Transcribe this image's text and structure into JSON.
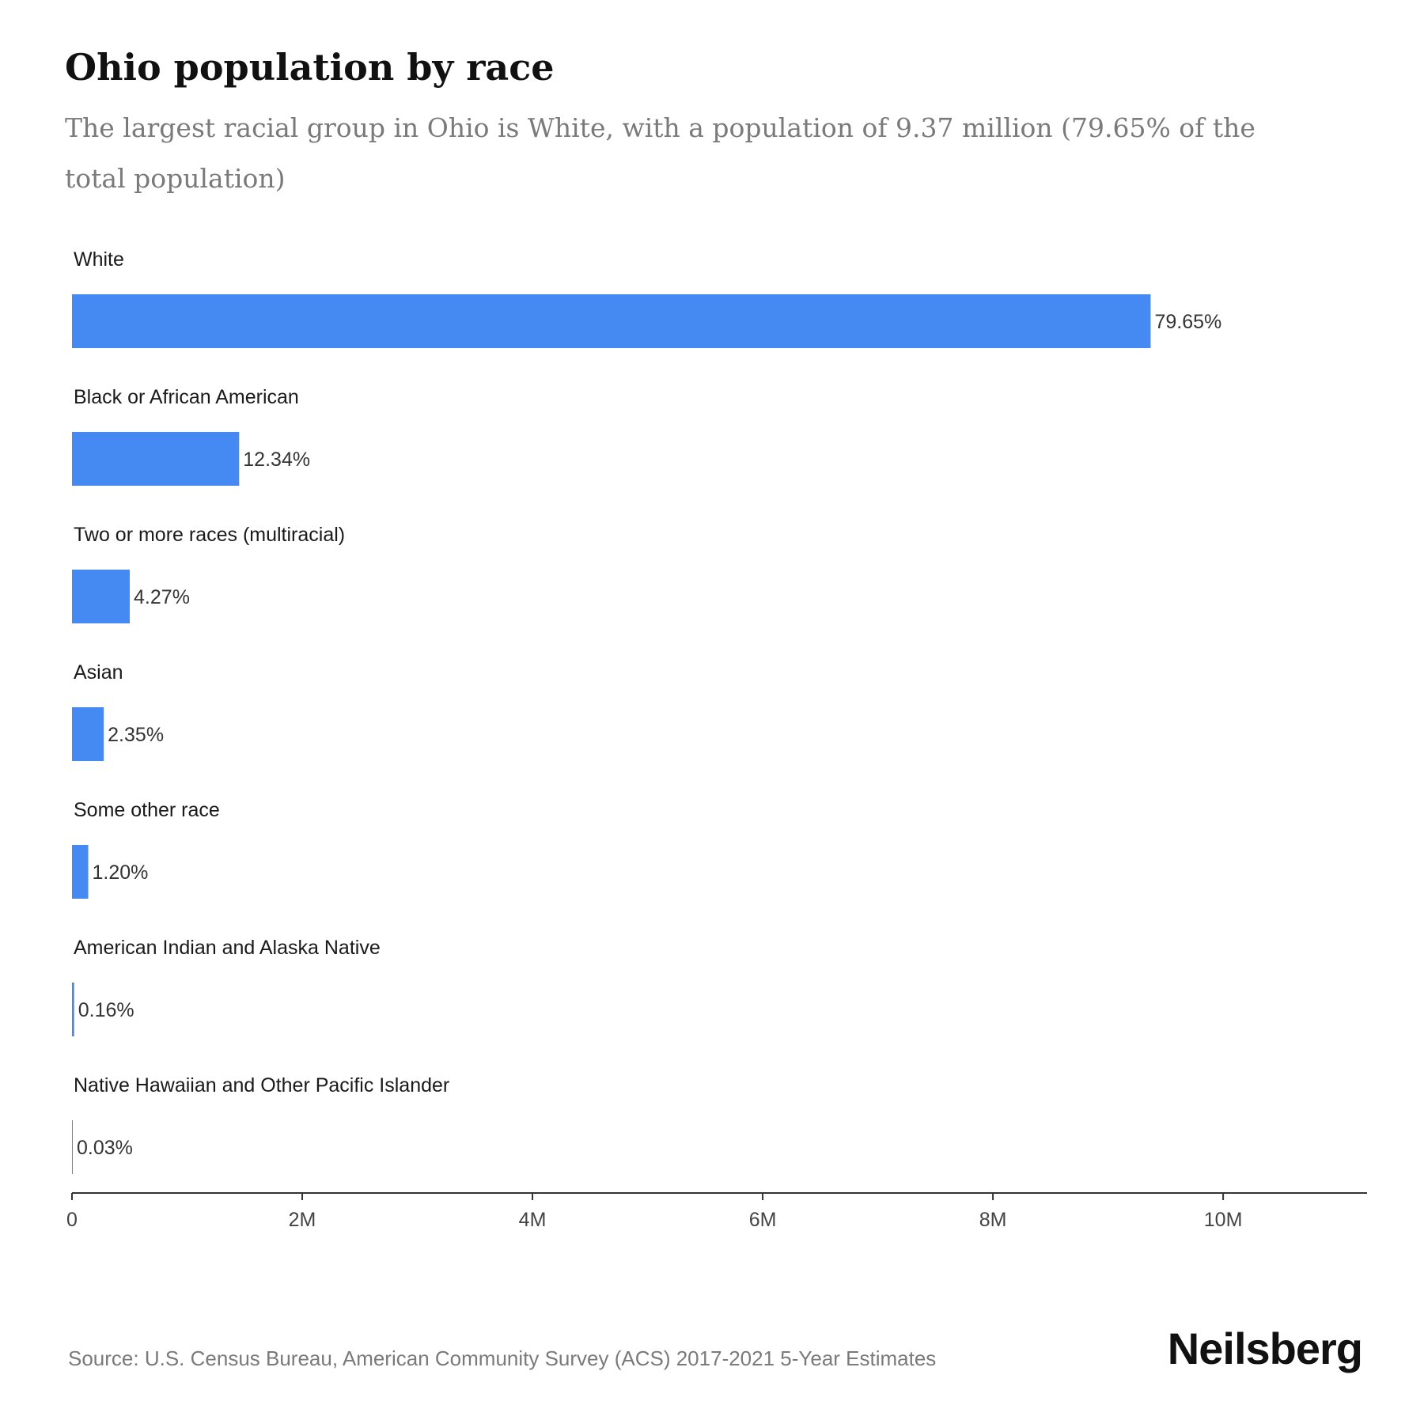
{
  "header": {
    "title": "Ohio population by race",
    "subtitle": "The largest racial group in Ohio is White, with a population of 9.37 million (79.65% of the total population)"
  },
  "footer": {
    "source": "Source: U.S. Census Bureau, American Community Survey (ACS) 2017-2021 5-Year Estimates",
    "brand": "Neilsberg"
  },
  "colors": {
    "bar": "#4589f2",
    "axis": "#333333"
  },
  "chart_data": {
    "type": "bar",
    "orientation": "horizontal",
    "categories": [
      "White",
      "Black or African American",
      "Two or more races (multiracial)",
      "Asian",
      "Some other race",
      "American Indian and Alaska Native",
      "Native Hawaiian and Other Pacific Islander"
    ],
    "values": [
      9370000,
      1452000,
      502000,
      276000,
      141000,
      18800,
      3500
    ],
    "value_labels": [
      "79.65%",
      "12.34%",
      "4.27%",
      "2.35%",
      "1.20%",
      "0.16%",
      "0.03%"
    ],
    "x_ticks": [
      0,
      2000000,
      4000000,
      6000000,
      8000000,
      10000000
    ],
    "x_tick_labels": [
      "0",
      "2M",
      "4M",
      "6M",
      "8M",
      "10M"
    ],
    "xlim": [
      0,
      11250000
    ],
    "grid": false,
    "legend": "none"
  }
}
